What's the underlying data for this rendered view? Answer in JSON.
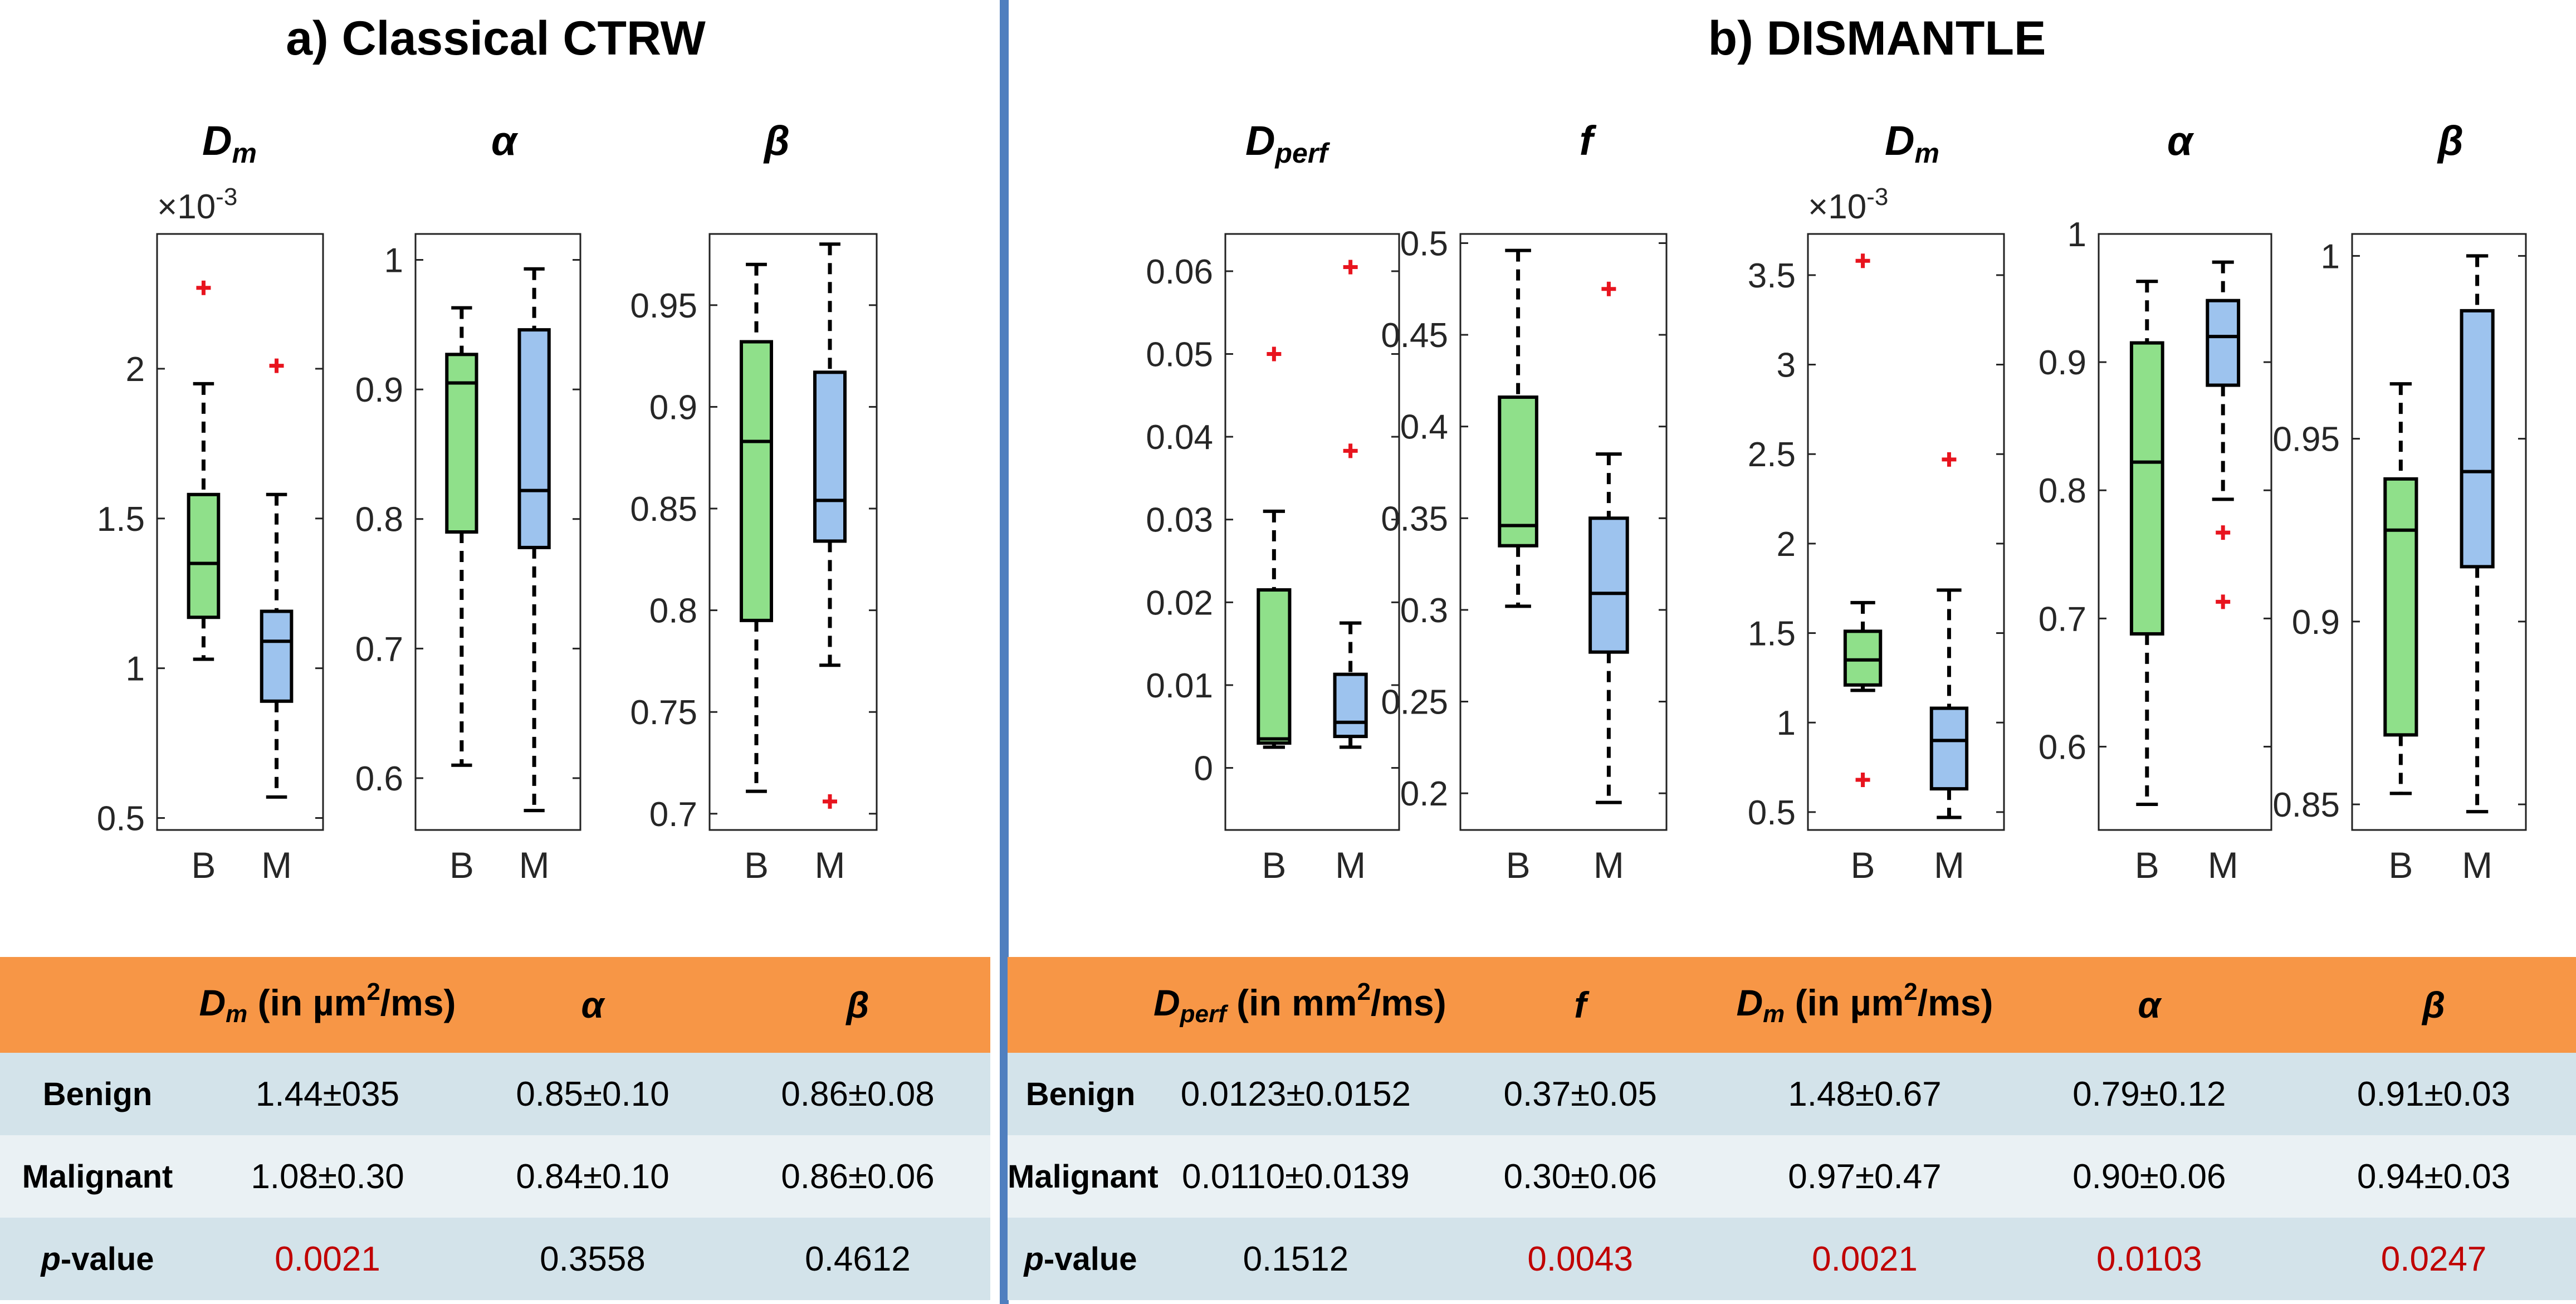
{
  "section_a": {
    "title": "a) Classical CTRW",
    "table": {
      "headers": [
        {
          "sym": "D",
          "sub": "m",
          "unit_pre": " (in µm",
          "unit_sup": "2",
          "unit_post": "/ms)"
        },
        {
          "sym": "α"
        },
        {
          "sym": "β"
        }
      ],
      "rows": [
        {
          "label": "Benign",
          "values": [
            "1.44±035",
            "0.85±0.10",
            "0.86±0.08"
          ]
        },
        {
          "label": "Malignant",
          "values": [
            "1.08±0.30",
            "0.84±0.10",
            "0.86±0.06"
          ]
        },
        {
          "label_pre": "p",
          "label_post": "-value",
          "values": [
            "0.0021",
            "0.3558",
            "0.4612"
          ],
          "significant": [
            true,
            false,
            false
          ]
        }
      ]
    }
  },
  "section_b": {
    "title": "b) DISMANTLE",
    "table": {
      "headers": [
        {
          "sym": "D",
          "sub": "perf",
          "unit_pre": " (in mm",
          "unit_sup": "2",
          "unit_post": "/ms)"
        },
        {
          "sym": "f"
        },
        {
          "sym": "D",
          "sub": "m",
          "unit_pre": " (in µm",
          "unit_sup": "2",
          "unit_post": "/ms)"
        },
        {
          "sym": "α"
        },
        {
          "sym": "β"
        }
      ],
      "rows": [
        {
          "label": "Benign",
          "values": [
            "0.0123±0.0152",
            "0.37±0.05",
            "1.48±0.67",
            "0.79±0.12",
            "0.91±0.03"
          ]
        },
        {
          "label": "Malignant",
          "values": [
            "0.0110±0.0139",
            "0.30±0.06",
            "0.97±0.47",
            "0.90±0.06",
            "0.94±0.03"
          ]
        },
        {
          "label_pre": "p",
          "label_post": "-value",
          "values": [
            "0.1512",
            "0.0043",
            "0.0021",
            "0.0103",
            "0.0247"
          ],
          "significant": [
            false,
            true,
            true,
            true,
            true
          ]
        }
      ]
    }
  },
  "colors": {
    "benign": "#8fe08a",
    "malignant": "#9dc3ee",
    "outlier": "#e8141e",
    "significant": "#c00000",
    "header": "#f79646",
    "divider": "#4f7fbf"
  },
  "chart_data": [
    {
      "type": "box",
      "section": "a",
      "title": "D",
      "title_sub": "m",
      "exponent_label": "×10",
      "exponent": "-3",
      "ylim": [
        0.46,
        2.45
      ],
      "yticks": [
        0.5,
        1,
        1.5,
        2
      ],
      "ytick_labels": [
        "0.5",
        "1",
        "1.5",
        "2"
      ],
      "categories": [
        "B",
        "M"
      ],
      "series": [
        {
          "name": "B",
          "whisker_low": 1.03,
          "q1": 1.17,
          "median": 1.35,
          "q3": 1.58,
          "whisker_high": 1.95,
          "outliers": [
            2.27
          ]
        },
        {
          "name": "M",
          "whisker_low": 0.57,
          "q1": 0.89,
          "median": 1.09,
          "q3": 1.19,
          "whisker_high": 1.58,
          "outliers": [
            2.01
          ]
        }
      ]
    },
    {
      "type": "box",
      "section": "a",
      "title": "α",
      "ylim": [
        0.56,
        1.02
      ],
      "yticks": [
        0.6,
        0.7,
        0.8,
        0.9,
        1
      ],
      "ytick_labels": [
        "0.6",
        "0.7",
        "0.8",
        "0.9",
        "1"
      ],
      "categories": [
        "B",
        "M"
      ],
      "series": [
        {
          "name": "B",
          "whisker_low": 0.61,
          "q1": 0.79,
          "median": 0.905,
          "q3": 0.927,
          "whisker_high": 0.963,
          "outliers": []
        },
        {
          "name": "M",
          "whisker_low": 0.575,
          "q1": 0.778,
          "median": 0.822,
          "q3": 0.946,
          "whisker_high": 0.993,
          "outliers": []
        }
      ]
    },
    {
      "type": "box",
      "section": "a",
      "title": "β",
      "ylim": [
        0.692,
        0.985
      ],
      "yticks": [
        0.7,
        0.75,
        0.8,
        0.85,
        0.9,
        0.95
      ],
      "ytick_labels": [
        "0.7",
        "0.75",
        "0.8",
        "0.85",
        "0.9",
        "0.95"
      ],
      "categories": [
        "B",
        "M"
      ],
      "series": [
        {
          "name": "B",
          "whisker_low": 0.711,
          "q1": 0.795,
          "median": 0.883,
          "q3": 0.932,
          "whisker_high": 0.97,
          "outliers": []
        },
        {
          "name": "M",
          "whisker_low": 0.773,
          "q1": 0.834,
          "median": 0.854,
          "q3": 0.917,
          "whisker_high": 0.98,
          "outliers": [
            0.706
          ]
        }
      ]
    },
    {
      "type": "box",
      "section": "b",
      "title": "D",
      "title_sub": "perf",
      "ylim": [
        -0.0075,
        0.0645
      ],
      "yticks": [
        0,
        0.01,
        0.02,
        0.03,
        0.04,
        0.05,
        0.06
      ],
      "ytick_labels": [
        "0",
        "0.01",
        "0.02",
        "0.03",
        "0.04",
        "0.05",
        "0.06"
      ],
      "categories": [
        "B",
        "M"
      ],
      "series": [
        {
          "name": "B",
          "whisker_low": 0.0025,
          "q1": 0.003,
          "median": 0.0035,
          "q3": 0.0215,
          "whisker_high": 0.031,
          "outliers": [
            0.05
          ]
        },
        {
          "name": "M",
          "whisker_low": 0.0025,
          "q1": 0.0038,
          "median": 0.0055,
          "q3": 0.0113,
          "whisker_high": 0.0175,
          "outliers": [
            0.0383,
            0.0605
          ]
        }
      ]
    },
    {
      "type": "box",
      "section": "b",
      "title": "f",
      "ylim": [
        0.18,
        0.505
      ],
      "yticks": [
        0.2,
        0.25,
        0.3,
        0.35,
        0.4,
        0.45,
        0.5
      ],
      "ytick_labels": [
        "0.2",
        "0.25",
        "0.3",
        "0.35",
        "0.4",
        "0.45",
        "0.5"
      ],
      "categories": [
        "B",
        "M"
      ],
      "series": [
        {
          "name": "B",
          "whisker_low": 0.302,
          "q1": 0.335,
          "median": 0.346,
          "q3": 0.416,
          "whisker_high": 0.496,
          "outliers": []
        },
        {
          "name": "M",
          "whisker_low": 0.195,
          "q1": 0.277,
          "median": 0.309,
          "q3": 0.35,
          "whisker_high": 0.385,
          "outliers": [
            0.475
          ]
        }
      ]
    },
    {
      "type": "box",
      "section": "b",
      "title": "D",
      "title_sub": "m",
      "exponent_label": "×10",
      "exponent": "-3",
      "ylim": [
        0.4,
        3.73
      ],
      "yticks": [
        0.5,
        1,
        1.5,
        2,
        2.5,
        3,
        3.5
      ],
      "ytick_labels": [
        "0.5",
        "1",
        "1.5",
        "2",
        "2.5",
        "3",
        "3.5"
      ],
      "categories": [
        "B",
        "M"
      ],
      "series": [
        {
          "name": "B",
          "whisker_low": 1.18,
          "q1": 1.21,
          "median": 1.35,
          "q3": 1.51,
          "whisker_high": 1.67,
          "outliers": [
            0.68,
            3.58
          ]
        },
        {
          "name": "M",
          "whisker_low": 0.47,
          "q1": 0.63,
          "median": 0.9,
          "q3": 1.08,
          "whisker_high": 1.74,
          "outliers": [
            2.47
          ]
        }
      ]
    },
    {
      "type": "box",
      "section": "b",
      "title": "α",
      "ylim": [
        0.535,
        1.0
      ],
      "yticks": [
        0.6,
        0.7,
        0.8,
        0.9,
        1
      ],
      "ytick_labels": [
        "0.6",
        "0.7",
        "0.8",
        "0.9",
        "1"
      ],
      "categories": [
        "B",
        "M"
      ],
      "series": [
        {
          "name": "B",
          "whisker_low": 0.555,
          "q1": 0.688,
          "median": 0.822,
          "q3": 0.915,
          "whisker_high": 0.963,
          "outliers": []
        },
        {
          "name": "M",
          "whisker_low": 0.793,
          "q1": 0.882,
          "median": 0.92,
          "q3": 0.948,
          "whisker_high": 0.978,
          "outliers": [
            0.713,
            0.767
          ]
        }
      ]
    },
    {
      "type": "box",
      "section": "b",
      "title": "β",
      "ylim": [
        0.843,
        1.006
      ],
      "yticks": [
        0.85,
        0.9,
        0.95,
        1
      ],
      "ytick_labels": [
        "0.85",
        "0.9",
        "0.95",
        "1"
      ],
      "categories": [
        "B",
        "M"
      ],
      "series": [
        {
          "name": "B",
          "whisker_low": 0.853,
          "q1": 0.869,
          "median": 0.925,
          "q3": 0.939,
          "whisker_high": 0.965,
          "outliers": []
        },
        {
          "name": "M",
          "whisker_low": 0.848,
          "q1": 0.915,
          "median": 0.941,
          "q3": 0.985,
          "whisker_high": 1.0,
          "outliers": []
        }
      ]
    }
  ]
}
